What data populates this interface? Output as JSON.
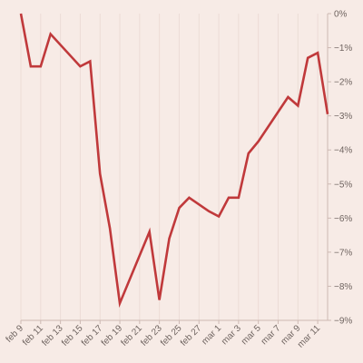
{
  "colors": {
    "background": "#f7ebe6",
    "line": "#c0393b",
    "grid": "#ecdcd6",
    "axis": "#cdb9b3",
    "text": "#6f6460"
  },
  "chart_data": {
    "type": "line",
    "title": "",
    "xlabel": "",
    "ylabel": "",
    "y_axis_position": "right",
    "grid": "vertical",
    "legend": "none",
    "ylim": [
      -9,
      0
    ],
    "xlim": [
      0,
      31
    ],
    "x_tick_values": [
      0,
      2,
      4,
      6,
      8,
      10,
      12,
      14,
      16,
      18,
      20,
      22,
      24,
      26,
      28,
      30
    ],
    "x_tick_labels": [
      "feb 9",
      "feb 11",
      "feb 13",
      "feb 15",
      "feb 17",
      "feb 19",
      "feb 21",
      "feb 23",
      "feb 25",
      "feb 27",
      "mar 1",
      "mar 3",
      "mar 5",
      "mar 7",
      "mar 9",
      "mar 11"
    ],
    "y_tick_values": [
      0,
      -1,
      -2,
      -3,
      -4,
      -5,
      -6,
      -7,
      -8,
      -9
    ],
    "y_tick_labels": [
      "0%",
      "−1%",
      "−2%",
      "−3%",
      "−4%",
      "−5%",
      "−6%",
      "−7%",
      "−8%",
      "−9%"
    ],
    "series": [
      {
        "x": [
          0,
          1,
          2,
          3,
          6,
          7,
          8,
          9,
          10,
          13,
          14,
          15,
          16,
          17,
          19,
          20,
          21,
          22,
          23,
          24,
          27,
          28,
          29,
          30,
          31
        ],
        "y": [
          0,
          -1.55,
          -1.55,
          -0.6,
          -1.55,
          -1.4,
          -4.7,
          -6.3,
          -8.5,
          -6.4,
          -8.4,
          -6.6,
          -5.7,
          -5.4,
          -5.8,
          -5.95,
          -5.4,
          -5.4,
          -4.1,
          -3.75,
          -2.45,
          -2.7,
          -1.3,
          -1.15,
          -2.95
        ]
      }
    ]
  }
}
